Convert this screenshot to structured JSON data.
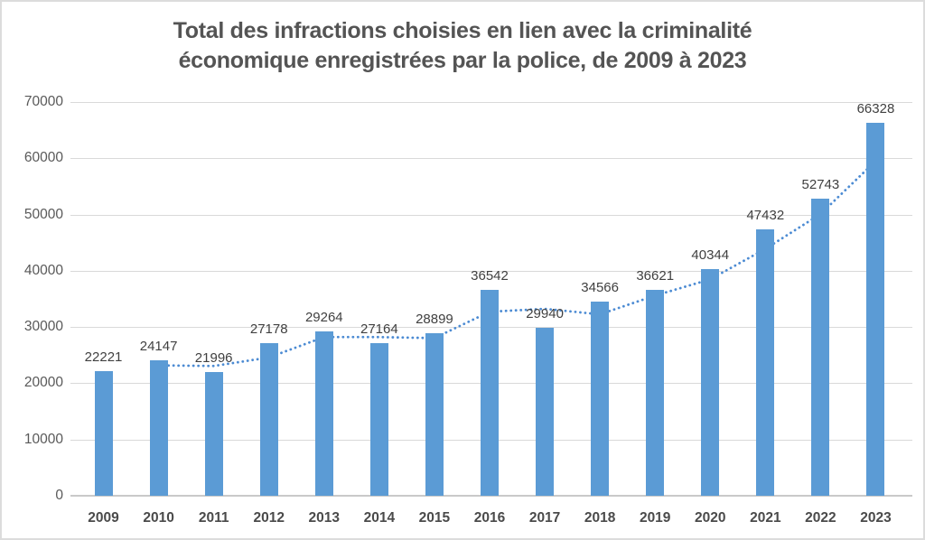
{
  "chart_data": {
    "type": "bar",
    "title_lines": [
      "Total des infractions choisies en lien avec la criminalité",
      "économique enregistrées par la police, de 2009 à 2023"
    ],
    "categories": [
      "2009",
      "2010",
      "2011",
      "2012",
      "2013",
      "2014",
      "2015",
      "2016",
      "2017",
      "2018",
      "2019",
      "2020",
      "2021",
      "2022",
      "2023"
    ],
    "values": [
      22221,
      24147,
      21996,
      27178,
      29264,
      27164,
      28899,
      36542,
      29940,
      34566,
      36621,
      40344,
      47432,
      52743,
      66328
    ],
    "xlabel": "",
    "ylabel": "",
    "ylim": [
      0,
      70000
    ],
    "ytick_step": 10000,
    "ytick_labels": [
      "0",
      "10000",
      "20000",
      "30000",
      "40000",
      "50000",
      "60000",
      "70000"
    ],
    "grid": true,
    "legend": "none",
    "bar_color": "#5B9BD5",
    "value_label_color": "#404040",
    "axis_text_color": "#595959",
    "gridline_color": "#D9D9D9",
    "trendline": {
      "type": "moving_average",
      "period": 2,
      "style": "dotted",
      "color": "#4C8BD3"
    }
  }
}
